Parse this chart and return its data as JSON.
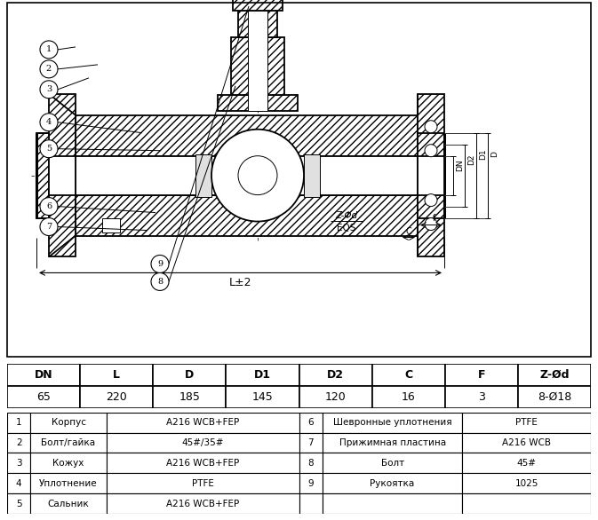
{
  "bg_color": "#ffffff",
  "black": "#000000",
  "dim_table": {
    "headers": [
      "DN",
      "L",
      "D",
      "D1",
      "D2",
      "C",
      "F",
      "Z-Ød"
    ],
    "values": [
      "65",
      "220",
      "185",
      "145",
      "120",
      "16",
      "3",
      "8-Ø18"
    ]
  },
  "parts_table": {
    "left": [
      [
        "1",
        "Корпус",
        "A216 WCB+FEP"
      ],
      [
        "2",
        "Болт/гайка",
        "45#/35#"
      ],
      [
        "3",
        "Кожух",
        "A216 WCB+FEP"
      ],
      [
        "4",
        "Уплотнение",
        "PTFE"
      ],
      [
        "5",
        "Сальник",
        "A216 WCB+FEP"
      ]
    ],
    "right": [
      [
        "6",
        "Шевронные уплотнения",
        "PTFE"
      ],
      [
        "7",
        "Прижимная пластина",
        "A216 WCB"
      ],
      [
        "8",
        "Болт",
        "45#"
      ],
      [
        "9",
        "Рукоятка",
        "1025"
      ],
      [
        "",
        "",
        ""
      ]
    ]
  }
}
